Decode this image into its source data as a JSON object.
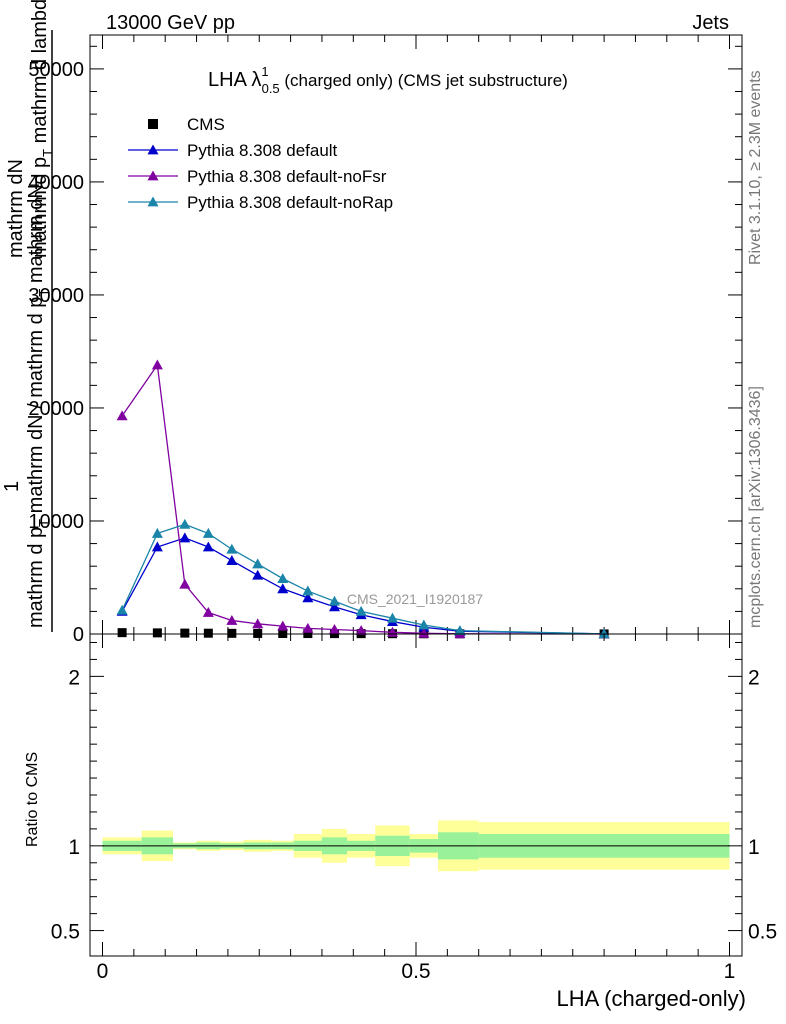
{
  "header": {
    "left": "13000 GeV pp",
    "right": "Jets"
  },
  "side_labels": {
    "rivet": "Rivet 3.1.10, ≥ 2.3M events",
    "mcplots": "mcplots.cern.ch [arXiv:1306.3436]"
  },
  "main_ylabel": {
    "line1": "mathrm dN",
    "line2": "mathrm d p",
    "line2_sub": "T",
    "line2_rest": " mathrm d lambda",
    "line3": "mathrm d p",
    "line3_sub": "T",
    "line3_rest": " mathrm dN / mathrm d p",
    "line3_sub2": "T",
    "line3_rest2": " mathrm dN",
    "numer": "1"
  },
  "ratio_ylabel": "Ratio to CMS",
  "xlabel": "LHA (charged-only)",
  "watermark": "CMS_2021_I1920187",
  "chart_data": [
    {
      "type": "line",
      "panel": "main",
      "title": {
        "base": "LHA λ",
        "sup": "1",
        "sub": "0.5",
        "rest": " (charged only) (CMS jet substructure)"
      },
      "xlim": [
        0,
        1
      ],
      "ylim": [
        0,
        53000
      ],
      "yticks": [
        0,
        10000,
        20000,
        30000,
        40000,
        50000
      ],
      "ytick_labels": [
        "0",
        "10000",
        "20000",
        "30000",
        "40000",
        "50000"
      ],
      "legend_position": "top-left",
      "series": [
        {
          "name": "CMS",
          "marker": "square",
          "color": "#000000",
          "x": [
            0.0313,
            0.0875,
            0.1313,
            0.1688,
            0.2063,
            0.2475,
            0.2875,
            0.3275,
            0.37,
            0.4125,
            0.4625,
            0.5125,
            0.57,
            0.8
          ],
          "y": [
            120,
            100,
            80,
            70,
            60,
            50,
            45,
            40,
            35,
            30,
            25,
            20,
            15,
            5
          ]
        },
        {
          "name": "Pythia 8.308 default",
          "marker": "triangle",
          "color": "#0000cc",
          "x": [
            0.0313,
            0.0875,
            0.1313,
            0.1688,
            0.2063,
            0.2475,
            0.2875,
            0.3275,
            0.37,
            0.4125,
            0.4625,
            0.5125,
            0.57,
            0.8
          ],
          "y": [
            2000,
            7700,
            8500,
            7700,
            6500,
            5200,
            4000,
            3200,
            2400,
            1700,
            1100,
            600,
            250,
            10
          ]
        },
        {
          "name": "Pythia 8.308 default-noFsr",
          "marker": "triangle",
          "color": "#8000a0",
          "x": [
            0.0313,
            0.0875,
            0.1313,
            0.1688,
            0.2063,
            0.2475,
            0.2875,
            0.3275,
            0.37,
            0.4125,
            0.4625,
            0.5125,
            0.57,
            0.8
          ],
          "y": [
            19300,
            23800,
            4400,
            1900,
            1200,
            900,
            700,
            500,
            400,
            300,
            150,
            60,
            20,
            0
          ]
        },
        {
          "name": "Pythia 8.308 default-noRap",
          "marker": "triangle",
          "color": "#1a85a8",
          "x": [
            0.0313,
            0.0875,
            0.1313,
            0.1688,
            0.2063,
            0.2475,
            0.2875,
            0.3275,
            0.37,
            0.4125,
            0.4625,
            0.5125,
            0.57,
            0.8
          ],
          "y": [
            2100,
            8900,
            9700,
            8900,
            7500,
            6200,
            4900,
            3800,
            2900,
            2000,
            1400,
            800,
            300,
            10
          ]
        }
      ]
    },
    {
      "type": "area",
      "panel": "ratio",
      "xlim": [
        0,
        1
      ],
      "ylim": [
        0.35,
        2.25
      ],
      "yticks": [
        0.5,
        1,
        2
      ],
      "ytick_labels": [
        "0.5",
        "1",
        "2"
      ],
      "xticks": [
        0,
        0.5,
        1
      ],
      "xtick_labels": [
        "0",
        "0.5",
        "1"
      ],
      "reference_line": 1,
      "colors": {
        "inner": "#99f299",
        "outer": "#ffff99"
      },
      "bins": [
        {
          "lo": 0.0,
          "hi": 0.0625,
          "inner": 0.03,
          "outer": 0.05
        },
        {
          "lo": 0.0625,
          "hi": 0.1125,
          "inner": 0.05,
          "outer": 0.09
        },
        {
          "lo": 0.1125,
          "hi": 0.15,
          "inner": 0.015,
          "outer": 0.02
        },
        {
          "lo": 0.15,
          "hi": 0.1875,
          "inner": 0.02,
          "outer": 0.03
        },
        {
          "lo": 0.1875,
          "hi": 0.225,
          "inner": 0.015,
          "outer": 0.025
        },
        {
          "lo": 0.225,
          "hi": 0.27,
          "inner": 0.02,
          "outer": 0.035
        },
        {
          "lo": 0.27,
          "hi": 0.305,
          "inner": 0.02,
          "outer": 0.03
        },
        {
          "lo": 0.305,
          "hi": 0.35,
          "inner": 0.03,
          "outer": 0.07
        },
        {
          "lo": 0.35,
          "hi": 0.39,
          "inner": 0.05,
          "outer": 0.1
        },
        {
          "lo": 0.39,
          "hi": 0.435,
          "inner": 0.03,
          "outer": 0.07
        },
        {
          "lo": 0.435,
          "hi": 0.49,
          "inner": 0.06,
          "outer": 0.12
        },
        {
          "lo": 0.49,
          "hi": 0.535,
          "inner": 0.04,
          "outer": 0.07
        },
        {
          "lo": 0.535,
          "hi": 0.6,
          "inner": 0.08,
          "outer": 0.15
        },
        {
          "lo": 0.6,
          "hi": 1.0,
          "inner": 0.07,
          "outer": 0.14
        }
      ]
    }
  ]
}
